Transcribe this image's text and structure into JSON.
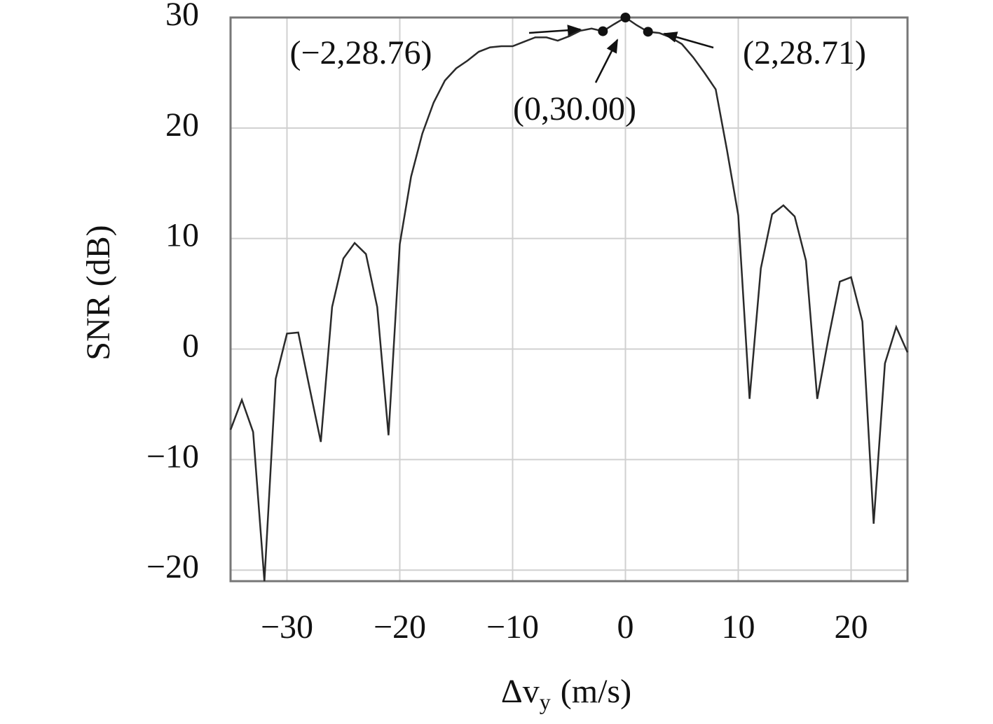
{
  "chart_data": {
    "type": "line",
    "ylabel": "SNR (dB)",
    "xlabel": {
      "main": "Δv",
      "sub": "y",
      "unit": "(m/s)"
    },
    "x": [
      -35,
      -34,
      -33,
      -32,
      -31,
      -30,
      -29,
      -28,
      -27,
      -26,
      -25,
      -24,
      -23,
      -22,
      -21,
      -20,
      -19,
      -18,
      -17,
      -16,
      -15,
      -14,
      -13,
      -12,
      -11,
      -10,
      -9,
      -8,
      -7,
      -6,
      -5,
      -4,
      -3,
      -2,
      -1,
      0,
      1,
      2,
      3,
      4,
      5,
      6,
      7,
      8,
      9,
      10,
      11,
      12,
      13,
      14,
      15,
      16,
      17,
      18,
      19,
      20,
      21,
      22,
      23,
      24,
      25
    ],
    "values": [
      -7.3,
      -4.6,
      -7.5,
      -21,
      -2.7,
      1.4,
      1.5,
      -3.5,
      -8.4,
      3.8,
      8.2,
      9.6,
      8.6,
      3.8,
      -7.8,
      9.5,
      15.6,
      19.5,
      22.3,
      24.3,
      25.4,
      26.1,
      26.9,
      27.3,
      27.4,
      27.4,
      27.8,
      28.2,
      28.2,
      27.9,
      28.3,
      28.8,
      29.0,
      28.76,
      29.4,
      30.0,
      29.3,
      28.71,
      28.6,
      28.2,
      27.6,
      26.4,
      25.0,
      23.5,
      18.0,
      12.1,
      -4.5,
      7.3,
      12.2,
      13.0,
      12.0,
      8.0,
      -4.5,
      1.0,
      6.1,
      6.5,
      2.5,
      -15.8,
      -1.3,
      2.0,
      -0.3
    ],
    "color": "#2a2a2a",
    "xlim": [
      -35,
      25
    ],
    "ylim": [
      -21,
      30
    ],
    "xticks": [
      {
        "value": -30,
        "label": "−30"
      },
      {
        "value": -20,
        "label": "−20"
      },
      {
        "value": -10,
        "label": "−10"
      },
      0,
      10,
      20
    ],
    "yticks": [
      {
        "value": -20,
        "label": "−20"
      },
      {
        "value": -10,
        "label": "−10"
      },
      0,
      10,
      20,
      30
    ],
    "grid": true,
    "annotations": [
      {
        "text": "(−2,28.76)",
        "x": -2,
        "y": 28.76
      },
      {
        "text": "(0,30.00)",
        "x": 0,
        "y": 30.0
      },
      {
        "text": "(2,28.71)",
        "x": 2,
        "y": 28.71
      }
    ]
  }
}
